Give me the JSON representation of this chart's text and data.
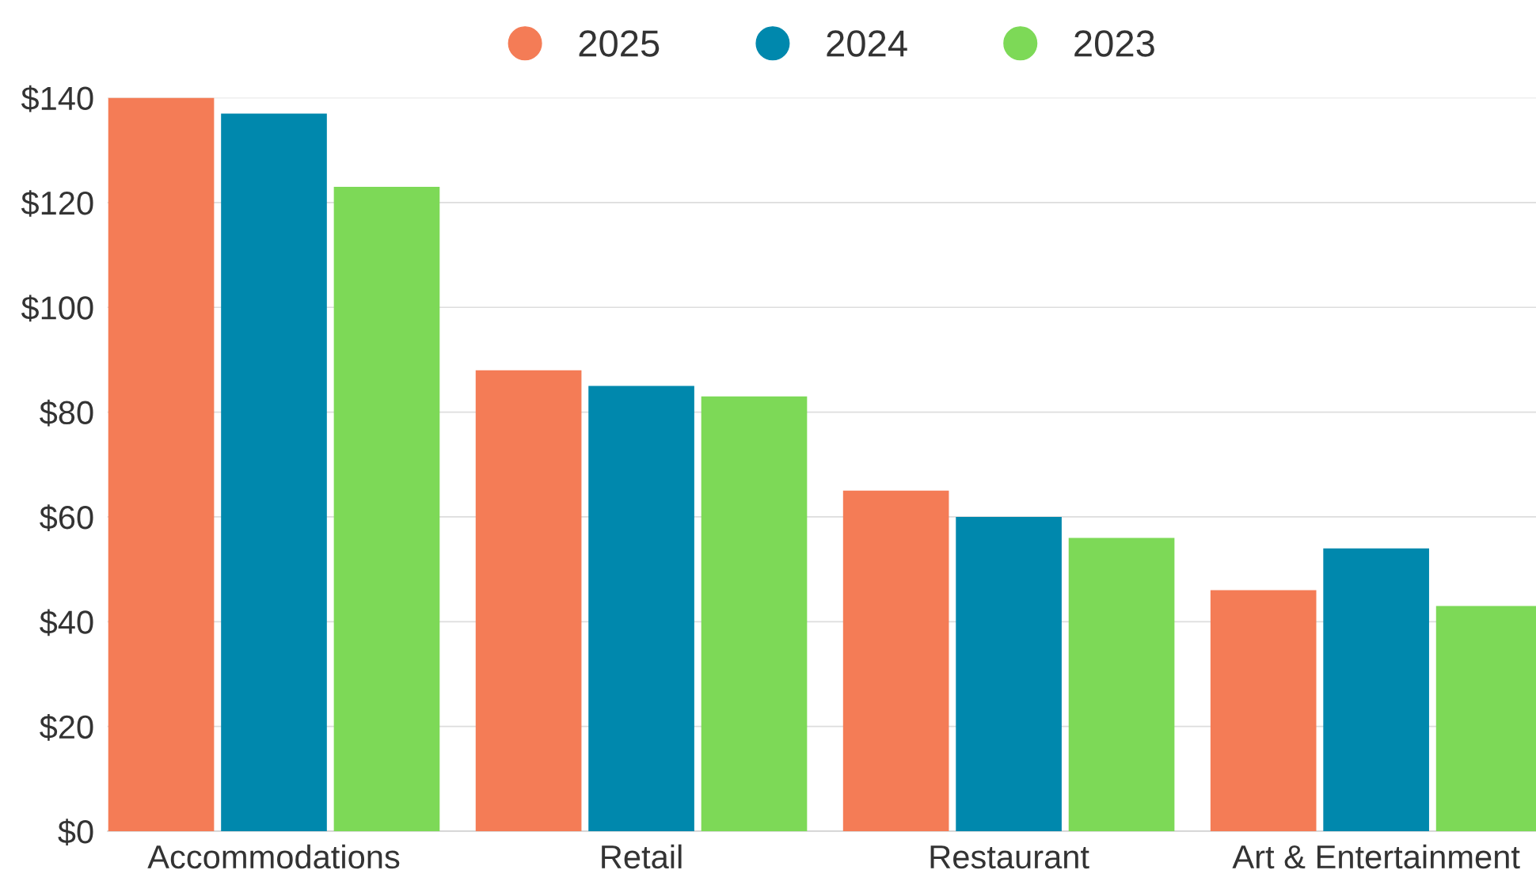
{
  "chart_data": {
    "type": "bar",
    "categories": [
      "Accommodations",
      "Retail",
      "Restaurant",
      "Art & Entertainment"
    ],
    "series": [
      {
        "name": "2025",
        "color": "#f47c56",
        "values": [
          140,
          88,
          65,
          46
        ]
      },
      {
        "name": "2024",
        "color": "#0088ad",
        "values": [
          137,
          85,
          60,
          54
        ]
      },
      {
        "name": "2023",
        "color": "#7dd957",
        "values": [
          123,
          83,
          56,
          43
        ]
      }
    ],
    "ylim": [
      0,
      140
    ],
    "yticks": [
      {
        "value": 0,
        "label": "$0"
      },
      {
        "value": 20,
        "label": "$20"
      },
      {
        "value": 40,
        "label": "$40"
      },
      {
        "value": 60,
        "label": "$60"
      },
      {
        "value": 80,
        "label": "$80"
      },
      {
        "value": 100,
        "label": "$100"
      },
      {
        "value": 120,
        "label": "$120"
      },
      {
        "value": 140,
        "label": "$140"
      }
    ],
    "grid": "y",
    "legend": "top"
  }
}
